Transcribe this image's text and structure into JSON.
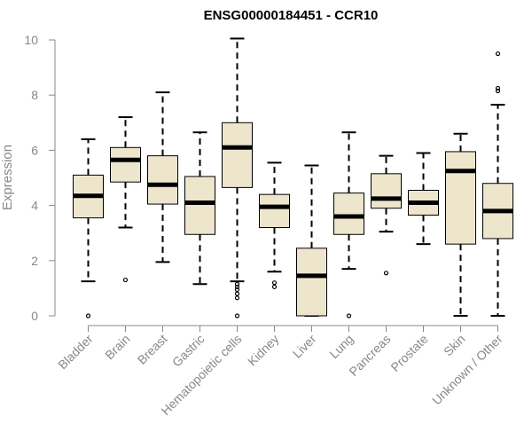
{
  "chart_data": {
    "type": "boxplot",
    "title": "ENSG00000184451 - CCR10",
    "ylabel": "Expression",
    "xlabel": "",
    "ylim": [
      0,
      10
    ],
    "yticks": [
      0,
      2,
      4,
      6,
      8,
      10
    ],
    "grid": false,
    "legend": "none",
    "box_fill": "#ede6cd",
    "box_stroke": "#000000",
    "axis_color": "#888888",
    "categories": [
      "Bladder",
      "Brain",
      "Breast",
      "Gastric",
      "Hematopoietic cells",
      "Kidney",
      "Liver",
      "Lung",
      "Pancreas",
      "Prostate",
      "Skin",
      "Unknown / Other"
    ],
    "boxes": [
      {
        "category": "Bladder",
        "whisker_low": 1.25,
        "q1": 3.55,
        "median": 4.35,
        "q3": 5.1,
        "whisker_high": 6.4,
        "outliers": [
          0.0
        ]
      },
      {
        "category": "Brain",
        "whisker_low": 3.2,
        "q1": 4.85,
        "median": 5.65,
        "q3": 6.1,
        "whisker_high": 7.2,
        "outliers": [
          1.3
        ]
      },
      {
        "category": "Breast",
        "whisker_low": 1.95,
        "q1": 4.05,
        "median": 4.75,
        "q3": 5.8,
        "whisker_high": 8.1,
        "outliers": []
      },
      {
        "category": "Gastric",
        "whisker_low": 1.15,
        "q1": 2.95,
        "median": 4.1,
        "q3": 5.05,
        "whisker_high": 6.65,
        "outliers": []
      },
      {
        "category": "Hematopoietic cells",
        "whisker_low": 1.25,
        "q1": 4.65,
        "median": 6.1,
        "q3": 7.0,
        "whisker_high": 10.05,
        "outliers": [
          0.0,
          0.65,
          0.8,
          0.95,
          1.05,
          1.15
        ]
      },
      {
        "category": "Kidney",
        "whisker_low": 1.6,
        "q1": 3.2,
        "median": 3.95,
        "q3": 4.4,
        "whisker_high": 5.55,
        "outliers": [
          1.05,
          1.2
        ]
      },
      {
        "category": "Liver",
        "whisker_low": 0.0,
        "q1": 0.0,
        "median": 1.45,
        "q3": 2.45,
        "whisker_high": 5.45,
        "outliers": []
      },
      {
        "category": "Lung",
        "whisker_low": 1.7,
        "q1": 2.95,
        "median": 3.6,
        "q3": 4.45,
        "whisker_high": 6.65,
        "outliers": [
          0.0
        ]
      },
      {
        "category": "Pancreas",
        "whisker_low": 3.05,
        "q1": 3.9,
        "median": 4.25,
        "q3": 5.15,
        "whisker_high": 5.8,
        "outliers": [
          1.55
        ]
      },
      {
        "category": "Prostate",
        "whisker_low": 2.6,
        "q1": 3.65,
        "median": 4.1,
        "q3": 4.55,
        "whisker_high": 5.9,
        "outliers": []
      },
      {
        "category": "Skin",
        "whisker_low": 0.0,
        "q1": 2.6,
        "median": 5.25,
        "q3": 5.95,
        "whisker_high": 6.6,
        "outliers": []
      },
      {
        "category": "Unknown / Other",
        "whisker_low": 0.0,
        "q1": 2.8,
        "median": 3.8,
        "q3": 4.8,
        "whisker_high": 7.65,
        "outliers": [
          8.15,
          8.25,
          9.5
        ]
      }
    ]
  }
}
